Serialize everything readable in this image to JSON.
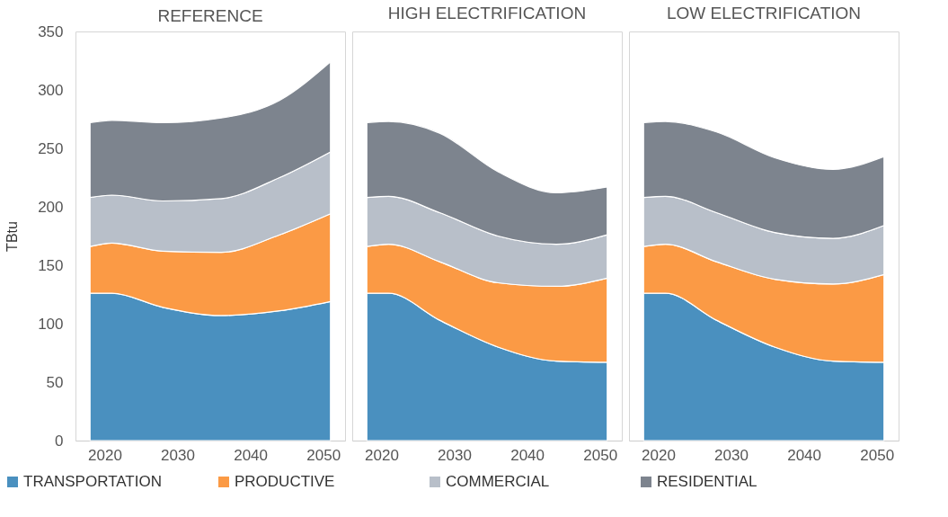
{
  "chart_data": [
    {
      "type": "area",
      "title": "REFERENCE",
      "ylabel": "TBtu",
      "stacked": true,
      "legend": "bottom",
      "grid": false,
      "x": [
        2018,
        2021,
        2028,
        2036,
        2044,
        2051
      ],
      "xlim": [
        2016,
        2053
      ],
      "xticks": [
        2020,
        2030,
        2040,
        2050
      ],
      "ylim": [
        0,
        350
      ],
      "yticks": [
        0,
        50,
        100,
        150,
        200,
        250,
        300,
        350
      ],
      "series": [
        {
          "name": "TRANSPORTATION",
          "color": "#4a90bf",
          "values": [
            126,
            126,
            114,
            107,
            111,
            119
          ]
        },
        {
          "name": "PRODUCTIVE",
          "color": "#fb9a45",
          "values": [
            40,
            43,
            48,
            54,
            65,
            75
          ]
        },
        {
          "name": "COMMERCIAL",
          "color": "#b8bfc9",
          "values": [
            42,
            41,
            43,
            46,
            49,
            53
          ]
        },
        {
          "name": "RESIDENTIAL",
          "color": "#7d848e",
          "values": [
            64,
            64,
            67,
            69,
            66,
            77
          ]
        }
      ]
    },
    {
      "type": "area",
      "title": "HIGH ELECTRIFICATION",
      "stacked": true,
      "grid": false,
      "tick_labels": "x",
      "x": [
        2018,
        2021,
        2028,
        2036,
        2044,
        2051
      ],
      "xlim": [
        2016,
        2053
      ],
      "xticks": [
        2020,
        2030,
        2040,
        2050
      ],
      "ylim": [
        0,
        350
      ],
      "yticks": [
        0,
        50,
        100,
        150,
        200,
        250,
        300,
        350
      ],
      "series": [
        {
          "color": "#4a90bf",
          "values": [
            126,
            126,
            103,
            80,
            68,
            67
          ]
        },
        {
          "color": "#fb9a45",
          "values": [
            40,
            42,
            50,
            55,
            64,
            72
          ]
        },
        {
          "color": "#b8bfc9",
          "values": [
            42,
            41,
            42,
            40,
            36,
            37
          ]
        },
        {
          "color": "#7d848e",
          "values": [
            64,
            64,
            68,
            55,
            44,
            41
          ]
        }
      ]
    },
    {
      "type": "area",
      "title": "LOW ELECTRIFICATION",
      "stacked": true,
      "grid": false,
      "tick_labels": "x",
      "x": [
        2018,
        2021,
        2028,
        2036,
        2044,
        2051
      ],
      "xlim": [
        2016,
        2053
      ],
      "xticks": [
        2020,
        2030,
        2040,
        2050
      ],
      "ylim": [
        0,
        350
      ],
      "yticks": [
        0,
        50,
        100,
        150,
        200,
        250,
        300,
        350
      ],
      "series": [
        {
          "color": "#4a90bf",
          "values": [
            126,
            126,
            103,
            80,
            68,
            67
          ]
        },
        {
          "color": "#fb9a45",
          "values": [
            40,
            42,
            50,
            58,
            66,
            75
          ]
        },
        {
          "color": "#b8bfc9",
          "values": [
            42,
            41,
            42,
            40,
            39,
            42
          ]
        },
        {
          "color": "#7d848e",
          "values": [
            64,
            64,
            69,
            64,
            59,
            59
          ]
        }
      ]
    }
  ]
}
